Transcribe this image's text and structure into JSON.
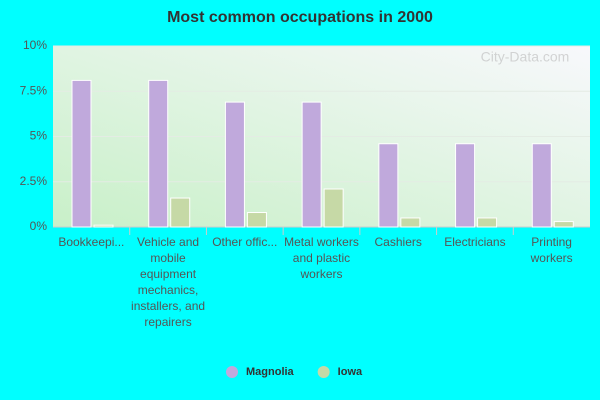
{
  "chart_data": {
    "type": "bar",
    "title": "Most common occupations in 2000",
    "watermark": "City-Data.com",
    "categories": [
      "Bookkeepi...",
      "Vehicle and mobile equipment mechanics, installers, and repairers",
      "Other offic...",
      "Metal workers and plastic workers",
      "Cashiers",
      "Electricians",
      "Printing workers"
    ],
    "series": [
      {
        "name": "Magnolia",
        "color": "#c0a9dc",
        "values": [
          8.1,
          8.1,
          6.9,
          6.9,
          4.6,
          4.6,
          4.6
        ]
      },
      {
        "name": "Iowa",
        "color": "#c6d9a6",
        "values": [
          0.1,
          1.6,
          0.8,
          2.1,
          0.5,
          0.5,
          0.3
        ]
      }
    ],
    "ylim": [
      0,
      10
    ],
    "yticks": [
      {
        "value": 0,
        "label": "0%"
      },
      {
        "value": 2.5,
        "label": "2.5%"
      },
      {
        "value": 5,
        "label": "5%"
      },
      {
        "value": 7.5,
        "label": "7.5%"
      },
      {
        "value": 10,
        "label": "10%"
      }
    ],
    "grid": true,
    "legend": "bottom"
  }
}
